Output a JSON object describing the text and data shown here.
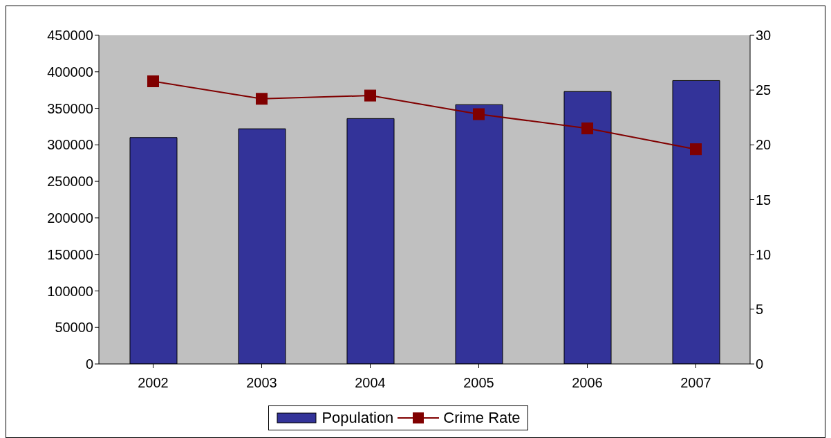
{
  "chart_data": {
    "type": "bar",
    "categories": [
      "2002",
      "2003",
      "2004",
      "2005",
      "2006",
      "2007"
    ],
    "series": [
      {
        "name": "Population",
        "color": "#333399",
        "values": [
          310000,
          322000,
          336000,
          355000,
          373000,
          388000
        ]
      },
      {
        "name": "Crime Rate",
        "type": "line",
        "axis": "y2",
        "color": "#800000",
        "marker": "square",
        "values": [
          25.8,
          24.2,
          24.5,
          22.8,
          21.5,
          19.6
        ]
      }
    ],
    "ylim": [
      0,
      450000
    ],
    "yticks": [
      0,
      50000,
      100000,
      150000,
      200000,
      250000,
      300000,
      350000,
      400000,
      450000
    ],
    "y2lim": [
      0,
      30
    ],
    "y2ticks": [
      0,
      5,
      10,
      15,
      20,
      25,
      30
    ],
    "grid": false,
    "legend": "bottom"
  }
}
